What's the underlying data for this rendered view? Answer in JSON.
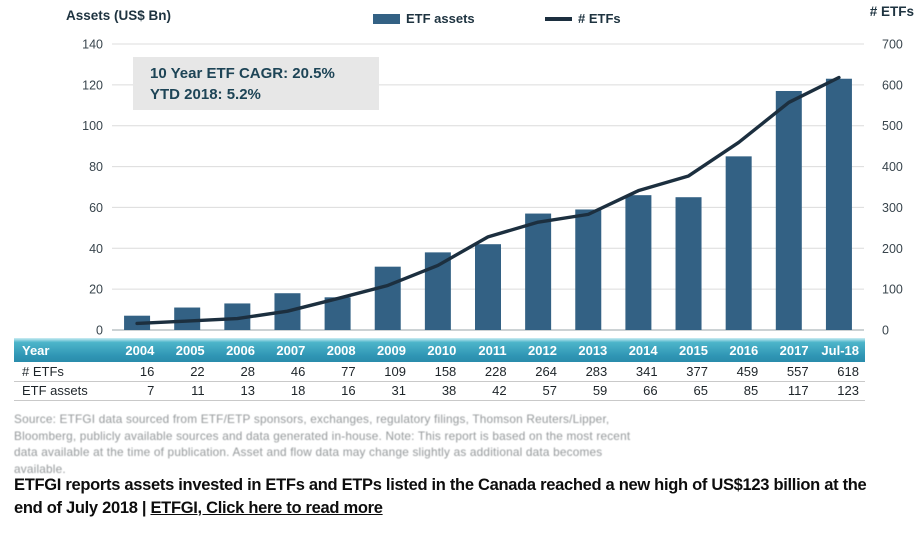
{
  "header": {
    "left_axis_title": "Assets (US$ Bn)",
    "right_axis_title": "# ETFs",
    "legend": {
      "bar_label": "ETF assets",
      "line_label": "# ETFs"
    }
  },
  "annotation": {
    "line1": "10 Year ETF CAGR: 20.5%",
    "line2": "YTD 2018: 5.2%"
  },
  "chart_data": {
    "type": "bar",
    "categories": [
      "2004",
      "2005",
      "2006",
      "2007",
      "2008",
      "2009",
      "2010",
      "2011",
      "2012",
      "2013",
      "2014",
      "2015",
      "2016",
      "2017",
      "Jul-18"
    ],
    "series": [
      {
        "name": "ETF assets",
        "type": "bar",
        "axis": "left",
        "values": [
          7,
          11,
          13,
          18,
          16,
          31,
          38,
          42,
          57,
          59,
          66,
          65,
          85,
          117,
          123
        ],
        "color": "#336184"
      },
      {
        "name": "# ETFs",
        "type": "line",
        "axis": "right",
        "values": [
          16,
          22,
          28,
          46,
          77,
          109,
          158,
          228,
          264,
          283,
          341,
          377,
          459,
          557,
          618
        ],
        "color": "#1c2f3f"
      }
    ],
    "left_axis": {
      "label": "Assets (US$ Bn)",
      "min": 0,
      "max": 140,
      "step": 20
    },
    "right_axis": {
      "label": "# ETFs",
      "min": 0,
      "max": 700,
      "step": 100
    },
    "grid": true,
    "legend_position": "top",
    "title": "10 Year ETF CAGR: 20.5% | YTD 2018: 5.2%"
  },
  "table": {
    "header": [
      "Year",
      "2004",
      "2005",
      "2006",
      "2007",
      "2008",
      "2009",
      "2010",
      "2011",
      "2012",
      "2013",
      "2014",
      "2015",
      "2016",
      "2017",
      "Jul-18"
    ],
    "rows": [
      {
        "label": "# ETFs",
        "values": [
          16,
          22,
          28,
          46,
          77,
          109,
          158,
          228,
          264,
          283,
          341,
          377,
          459,
          557,
          618
        ]
      },
      {
        "label": "ETF assets",
        "values": [
          7,
          11,
          13,
          18,
          16,
          31,
          38,
          42,
          57,
          59,
          66,
          65,
          85,
          117,
          123
        ]
      }
    ]
  },
  "source": {
    "lines": [
      "Source: ETFGI data sourced from ETF/ETP sponsors, exchanges, regulatory filings, Thomson Reuters/Lipper,",
      "Bloomberg, publicly available sources and data generated in-house. Note: This report is based on the most recent",
      "data available at the time of publication. Asset and flow data may change slightly as additional data becomes",
      "available."
    ]
  },
  "caption": {
    "line1": "ETFGI reports assets invested in ETFs and ETPs listed in the Canada reached a new high of US$123 billion at the",
    "line2_prefix": "end of July 2018 | ",
    "link": "ETFGI, Click here to read more"
  },
  "colors": {
    "bar": "#336184",
    "line": "#1c2f3f",
    "grid": "#dcdcdc",
    "baseline": "#9aa4aa",
    "table_header_top": "#4db5ca",
    "table_header_bottom": "#2a8cab",
    "annotation_bg": "#e7e7e7",
    "annotation_text": "#1d4456",
    "source_text": "#94989a"
  }
}
